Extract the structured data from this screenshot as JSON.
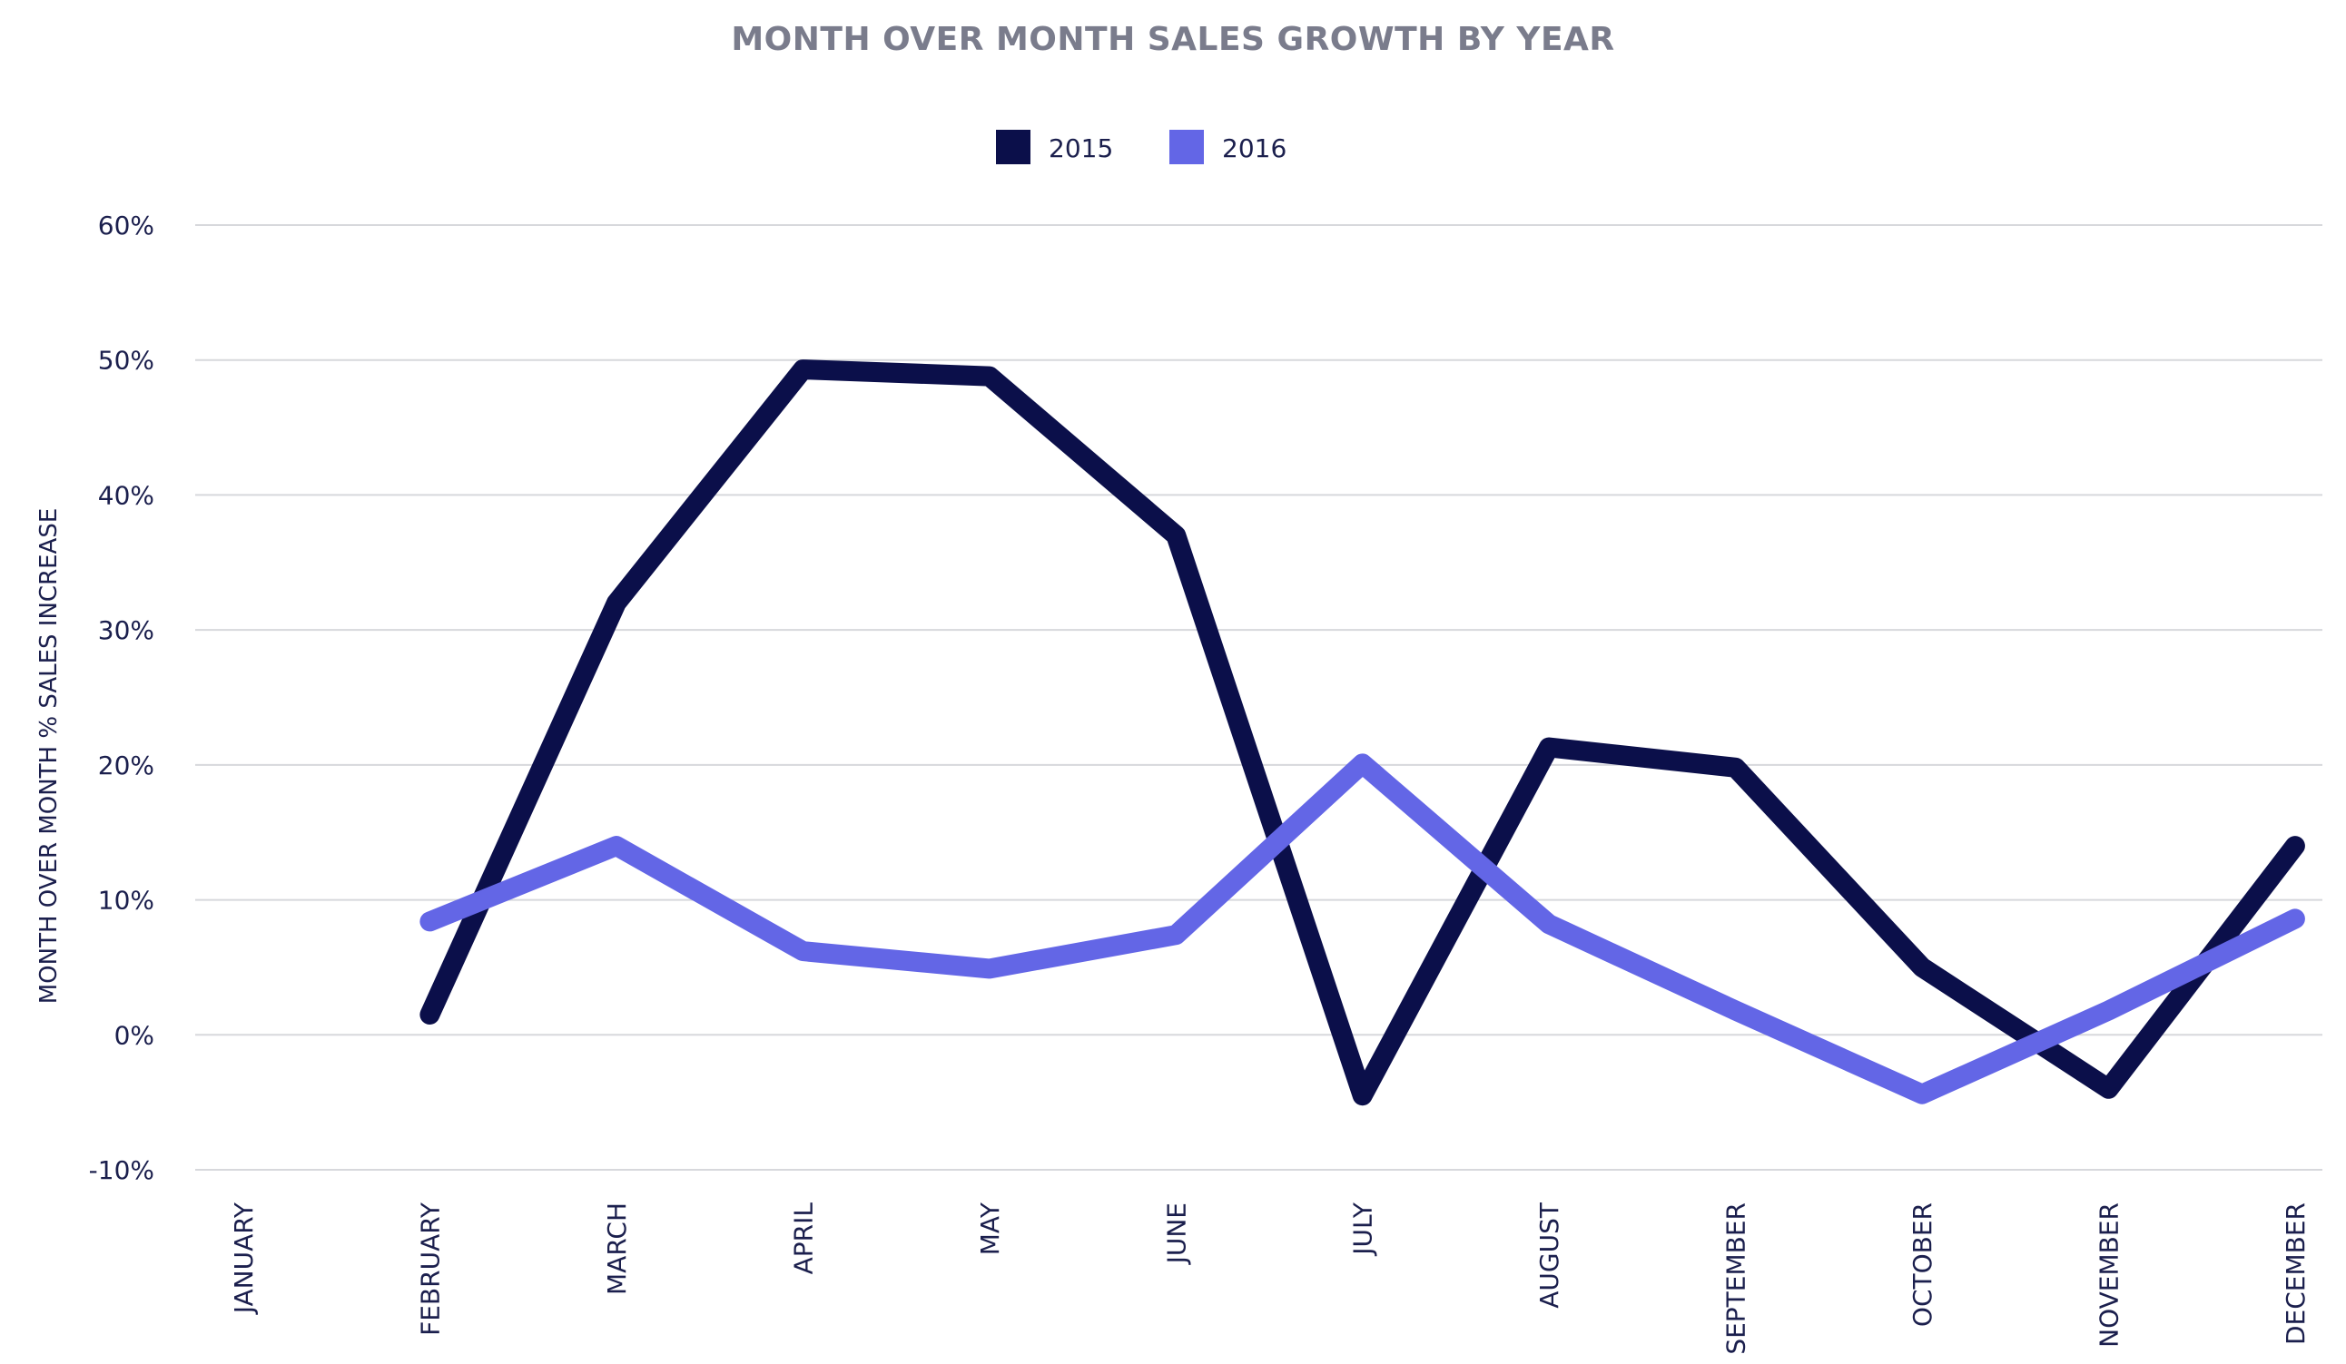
{
  "chart_data": {
    "type": "line",
    "title": "MONTH OVER MONTH SALES GROWTH BY YEAR",
    "ylabel": "MONTH OVER MONTH % SALES INCREASE",
    "xlabel": "",
    "categories": [
      "JANUARY",
      "FEBRUARY",
      "MARCH",
      "APRIL",
      "MAY",
      "JUNE",
      "JULY",
      "AUGUST",
      "SEPTEMBER",
      "OCTOBER",
      "NOVEMBER",
      "DECEMBER"
    ],
    "yticks": [
      "-10%",
      "0%",
      "10%",
      "20%",
      "30%",
      "40%",
      "50%",
      "60%"
    ],
    "ylim": [
      -10,
      60
    ],
    "grid": true,
    "legend_position": "top-center",
    "series": [
      {
        "name": "2015",
        "color": "#0b0f4a",
        "values": [
          null,
          1.5,
          32,
          49.3,
          48.8,
          37,
          -4.5,
          21.3,
          19.8,
          5,
          -4,
          14
        ]
      },
      {
        "name": "2016",
        "color": "#6366e6",
        "values": [
          null,
          8.4,
          14,
          6.2,
          4.9,
          7.4,
          20.1,
          8.2,
          1.8,
          -4.4,
          1.8,
          8.6
        ]
      }
    ]
  }
}
